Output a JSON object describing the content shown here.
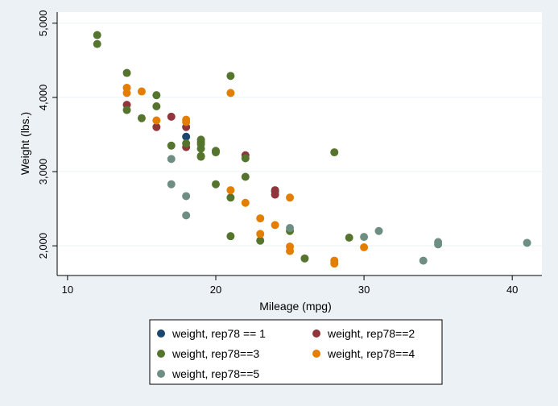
{
  "chart_data": {
    "type": "scatter",
    "xlabel": "Mileage (mpg)",
    "ylabel": "Weight (lbs.)",
    "xlim": [
      9.3,
      42
    ],
    "ylim": [
      1600,
      5150
    ],
    "x_ticks": [
      10,
      20,
      30,
      40
    ],
    "x_tick_labels": [
      "10",
      "20",
      "30",
      "40"
    ],
    "y_ticks": [
      2000,
      3000,
      4000,
      5000
    ],
    "y_tick_labels": [
      "2,000",
      "3,000",
      "4,000",
      "5,000"
    ],
    "grid": "horizontal",
    "legend_position": "bottom",
    "series": [
      {
        "name": "weight, rep78 == 1",
        "color": "#1a476f",
        "points": [
          [
            18,
            3470
          ],
          [
            24,
            2730
          ]
        ]
      },
      {
        "name": "weight, rep78==2",
        "color": "#90353b",
        "points": [
          [
            14,
            3900
          ],
          [
            16,
            3600
          ],
          [
            17,
            3740
          ],
          [
            18,
            3600
          ],
          [
            18,
            3330
          ],
          [
            22,
            3220
          ],
          [
            24,
            2750
          ],
          [
            24,
            2690
          ]
        ]
      },
      {
        "name": "weight, rep78==3",
        "color": "#55752f",
        "points": [
          [
            12,
            4840
          ],
          [
            12,
            4720
          ],
          [
            14,
            4330
          ],
          [
            14,
            3830
          ],
          [
            15,
            3720
          ],
          [
            16,
            4030
          ],
          [
            16,
            3880
          ],
          [
            17,
            3350
          ],
          [
            18,
            3380
          ],
          [
            19,
            3430
          ],
          [
            19,
            3400
          ],
          [
            19,
            3370
          ],
          [
            19,
            3310
          ],
          [
            19,
            3200
          ],
          [
            19,
            3210
          ],
          [
            20,
            3280
          ],
          [
            20,
            3260
          ],
          [
            20,
            2830
          ],
          [
            21,
            4290
          ],
          [
            21,
            2650
          ],
          [
            21,
            2130
          ],
          [
            22,
            3180
          ],
          [
            22,
            2930
          ],
          [
            23,
            2070
          ],
          [
            25,
            2200
          ],
          [
            26,
            1830
          ],
          [
            28,
            3260
          ],
          [
            29,
            2110
          ]
        ]
      },
      {
        "name": "weight, rep78==4",
        "color": "#e37e00",
        "points": [
          [
            14,
            4130
          ],
          [
            14,
            4060
          ],
          [
            15,
            4080
          ],
          [
            16,
            3690
          ],
          [
            18,
            3700
          ],
          [
            18,
            3670
          ],
          [
            21,
            4060
          ],
          [
            21,
            2750
          ],
          [
            22,
            2580
          ],
          [
            23,
            2370
          ],
          [
            23,
            2160
          ],
          [
            24,
            2280
          ],
          [
            25,
            2650
          ],
          [
            25,
            1990
          ],
          [
            25,
            1930
          ],
          [
            28,
            1800
          ],
          [
            28,
            1760
          ],
          [
            30,
            1980
          ]
        ]
      },
      {
        "name": "weight, rep78==5",
        "color": "#6e8e84",
        "points": [
          [
            17,
            3170
          ],
          [
            17,
            2830
          ],
          [
            18,
            2670
          ],
          [
            18,
            2410
          ],
          [
            25,
            2240
          ],
          [
            30,
            2120
          ],
          [
            31,
            2200
          ],
          [
            34,
            1800
          ],
          [
            35,
            2050
          ],
          [
            35,
            2020
          ],
          [
            41,
            2040
          ]
        ]
      }
    ]
  }
}
